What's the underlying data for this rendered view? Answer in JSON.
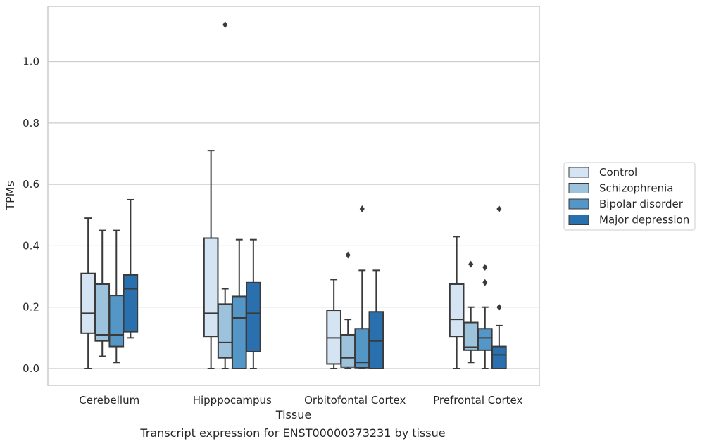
{
  "caption": "Transcript expression for ENST00000373231 by tissue",
  "chart_data": {
    "type": "boxplot",
    "xlabel": "Tissue",
    "ylabel": "TPMs",
    "ylim": [
      -0.055,
      1.18
    ],
    "yticks": [
      "0.0",
      "0.2",
      "0.4",
      "0.6",
      "0.8",
      "1.0"
    ],
    "grid": true,
    "legend_position": "right",
    "categories": [
      "Cerebellum",
      "Hipppocampus",
      "Orbitofontal Cortex",
      "Prefrontal Cortex"
    ],
    "series": [
      {
        "name": "Control",
        "color": "#d4e4f2",
        "boxes": [
          {
            "whisker_low": 0.0,
            "q1": 0.115,
            "median": 0.18,
            "q3": 0.31,
            "whisker_high": 0.49,
            "outliers": []
          },
          {
            "whisker_low": 0.0,
            "q1": 0.105,
            "median": 0.18,
            "q3": 0.425,
            "whisker_high": 0.71,
            "outliers": []
          },
          {
            "whisker_low": 0.0,
            "q1": 0.015,
            "median": 0.1,
            "q3": 0.19,
            "whisker_high": 0.29,
            "outliers": []
          },
          {
            "whisker_low": 0.0,
            "q1": 0.105,
            "median": 0.16,
            "q3": 0.275,
            "whisker_high": 0.43,
            "outliers": []
          }
        ]
      },
      {
        "name": "Schizophrenia",
        "color": "#9dc3dc",
        "boxes": [
          {
            "whisker_low": 0.04,
            "q1": 0.09,
            "median": 0.11,
            "q3": 0.275,
            "whisker_high": 0.45,
            "outliers": []
          },
          {
            "whisker_low": 0.0,
            "q1": 0.035,
            "median": 0.085,
            "q3": 0.21,
            "whisker_high": 0.26,
            "outliers": [
              1.12
            ]
          },
          {
            "whisker_low": 0.0,
            "q1": 0.005,
            "median": 0.035,
            "q3": 0.11,
            "whisker_high": 0.16,
            "outliers": [
              0.37
            ]
          },
          {
            "whisker_low": 0.02,
            "q1": 0.06,
            "median": 0.07,
            "q3": 0.15,
            "whisker_high": 0.2,
            "outliers": [
              0.34
            ]
          }
        ]
      },
      {
        "name": "Bipolar disorder",
        "color": "#5497c6",
        "boxes": [
          {
            "whisker_low": 0.02,
            "q1": 0.072,
            "median": 0.11,
            "q3": 0.238,
            "whisker_high": 0.45,
            "outliers": []
          },
          {
            "whisker_low": 0.0,
            "q1": 0.0,
            "median": 0.165,
            "q3": 0.235,
            "whisker_high": 0.42,
            "outliers": []
          },
          {
            "whisker_low": 0.0,
            "q1": 0.003,
            "median": 0.02,
            "q3": 0.13,
            "whisker_high": 0.32,
            "outliers": [
              0.52
            ]
          },
          {
            "whisker_low": 0.0,
            "q1": 0.06,
            "median": 0.1,
            "q3": 0.13,
            "whisker_high": 0.2,
            "outliers": [
              0.28,
              0.33
            ]
          }
        ]
      },
      {
        "name": "Major depression",
        "color": "#2a6fae",
        "boxes": [
          {
            "whisker_low": 0.1,
            "q1": 0.12,
            "median": 0.26,
            "q3": 0.305,
            "whisker_high": 0.55,
            "outliers": []
          },
          {
            "whisker_low": 0.0,
            "q1": 0.055,
            "median": 0.18,
            "q3": 0.28,
            "whisker_high": 0.42,
            "outliers": []
          },
          {
            "whisker_low": 0.0,
            "q1": 0.0,
            "median": 0.09,
            "q3": 0.185,
            "whisker_high": 0.32,
            "outliers": []
          },
          {
            "whisker_low": 0.0,
            "q1": 0.0,
            "median": 0.045,
            "q3": 0.072,
            "whisker_high": 0.14,
            "outliers": [
              0.2,
              0.52
            ]
          }
        ]
      }
    ]
  }
}
